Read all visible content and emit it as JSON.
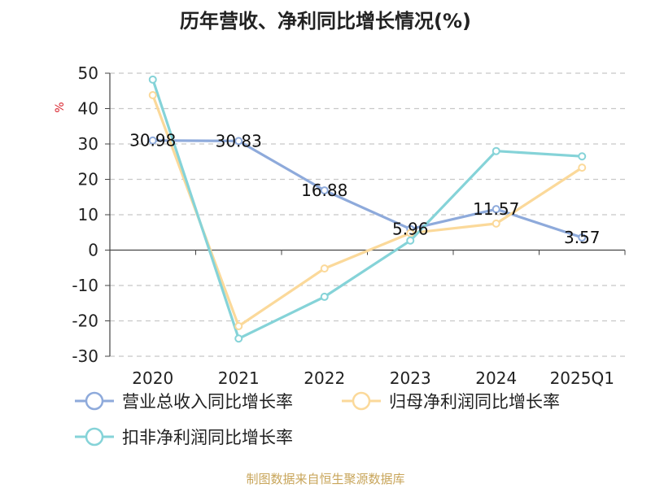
{
  "title": "历年营收、净利同比增长情况(%)",
  "source": "制图数据来自恒生聚源数据库",
  "chart_data": {
    "type": "line",
    "title": "历年营收、净利同比增长情况(%)",
    "ylabel": "%",
    "categories": [
      "2020",
      "2021",
      "2022",
      "2023",
      "2024",
      "2025Q1"
    ],
    "ylim": [
      -30,
      50
    ],
    "yticks": [
      50,
      40,
      30,
      20,
      10,
      0,
      -10,
      -20,
      -30
    ],
    "grid": true,
    "legend_position": "bottom",
    "series": [
      {
        "name": "营业总收入同比增长率",
        "color": "#8eaadb",
        "values": [
          30.98,
          30.83,
          16.88,
          5.96,
          11.57,
          3.57
        ],
        "labels": [
          "30.98",
          "30.83",
          "16.88",
          "5.96",
          "11.57",
          "3.57"
        ]
      },
      {
        "name": "归母净利润同比增长率",
        "color": "#fbd99a",
        "values": [
          43.8,
          -21.5,
          -5.2,
          4.8,
          7.5,
          23.3
        ]
      },
      {
        "name": "扣非净利润同比增长率",
        "color": "#85d3d8",
        "values": [
          48.2,
          -25.0,
          -13.2,
          2.7,
          28.0,
          26.5
        ]
      }
    ]
  }
}
